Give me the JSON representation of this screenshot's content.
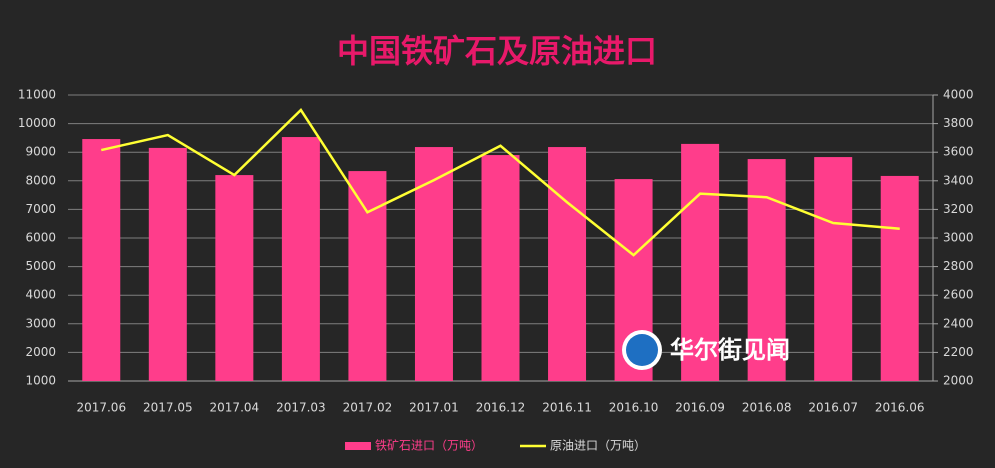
{
  "chart_data": {
    "type": "bar-line",
    "title": "中国铁矿石及原油进口",
    "watermark": "华尔街见闻",
    "categories": [
      "2017.06",
      "2017.05",
      "2017.04",
      "2017.03",
      "2017.02",
      "2017.01",
      "2016.12",
      "2016.11",
      "2016.10",
      "2016.09",
      "2016.08",
      "2016.07",
      "2016.06"
    ],
    "series": [
      {
        "name": "铁矿石进口（万吨）",
        "type": "bar",
        "color": "#ff3d8b",
        "values": [
          9460,
          9150,
          8200,
          9530,
          8340,
          9180,
          8900,
          9180,
          8060,
          9290,
          8760,
          8830,
          8170
        ]
      },
      {
        "name": "原油进口（万吨）",
        "type": "line",
        "axis": "y2",
        "color": "#ffff33",
        "values": [
          3615,
          3720,
          3440,
          3895,
          3180,
          3405,
          3645,
          3250,
          2880,
          3310,
          3285,
          3105,
          3065
        ]
      }
    ],
    "ylim": [
      1000,
      11000
    ],
    "yticks": [
      1000,
      2000,
      3000,
      4000,
      5000,
      6000,
      7000,
      8000,
      9000,
      10000,
      11000
    ],
    "y2lim": [
      2000,
      4000
    ],
    "y2ticks": [
      2000,
      2200,
      2400,
      2600,
      2800,
      3000,
      3200,
      3400,
      3600,
      3800,
      4000
    ],
    "grid": true,
    "legend": "bottom"
  }
}
